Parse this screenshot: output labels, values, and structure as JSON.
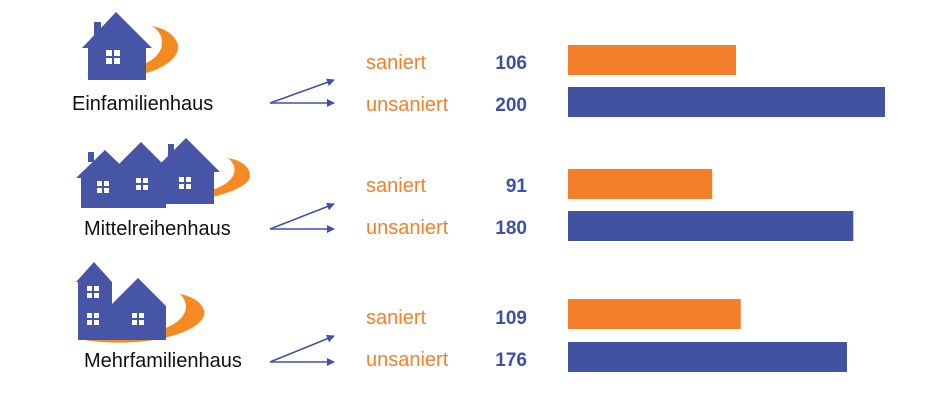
{
  "colors": {
    "saniert": "#f47f2a",
    "unsaniert": "#4152a3",
    "value_text": "#3f4fa3",
    "house": "#4655a6",
    "swoosh": "#f58a23"
  },
  "chart_data": {
    "type": "bar",
    "orientation": "horizontal",
    "categories": [
      "Einfamilienhaus",
      "Mittelreihenhaus",
      "Mehrfamilienhaus"
    ],
    "category_icons": [
      "single-house-icon",
      "row-houses-icon",
      "apartment-building-icon"
    ],
    "series": [
      {
        "name": "saniert",
        "values": [
          106,
          91,
          109
        ]
      },
      {
        "name": "unsaniert",
        "values": [
          200,
          180,
          176
        ]
      }
    ],
    "xlim": [
      0,
      200
    ],
    "grid": false,
    "title": "",
    "xlabel": "",
    "ylabel": ""
  }
}
